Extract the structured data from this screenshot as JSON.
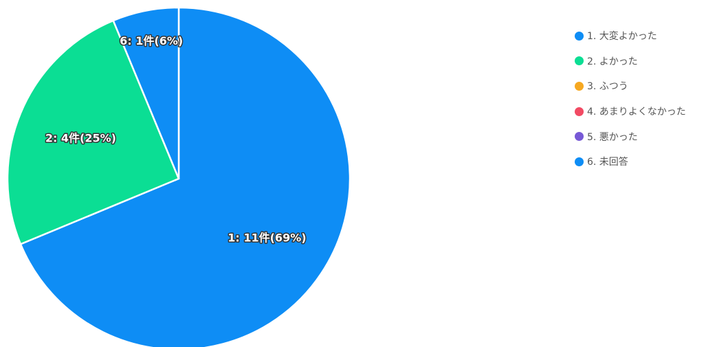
{
  "chart_data": {
    "type": "pie",
    "title": "",
    "start_angle_deg": 0,
    "direction": "clockwise",
    "legend_position": "right",
    "categories": [
      "1. 大変よかった",
      "2. よかった",
      "3. ふつう",
      "4. あまりよくなかった",
      "5. 悪かった",
      "6. 未回答"
    ],
    "values": [
      11,
      4,
      0,
      0,
      0,
      1
    ],
    "colors": [
      "#0e8df5",
      "#0bde94",
      "#f6a821",
      "#f24a63",
      "#7759d6",
      "#0e8df5"
    ],
    "slices": [
      {
        "category": "1. 大変よかった",
        "value": 11,
        "label": "1: 11件(69%)"
      },
      {
        "category": "2. よかった",
        "value": 4,
        "label": "2: 4件(25%)"
      },
      {
        "category": "3. ふつう",
        "value": 0,
        "label": ""
      },
      {
        "category": "4. あまりよくなかった",
        "value": 0,
        "label": ""
      },
      {
        "category": "5. 悪かった",
        "value": 0,
        "label": ""
      },
      {
        "category": "6. 未回答",
        "value": 1,
        "label": "6: 1件(6%)"
      }
    ]
  }
}
